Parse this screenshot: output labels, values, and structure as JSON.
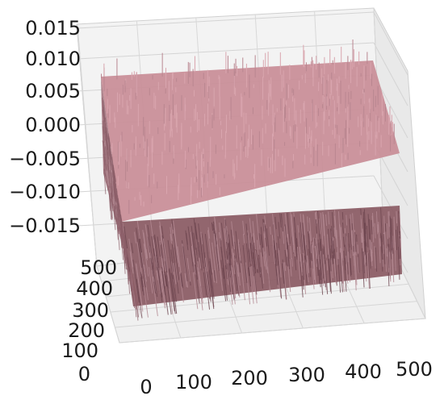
{
  "chart_data": {
    "type": "surface-3d",
    "title": "",
    "xlabel": "",
    "ylabel": "",
    "zlabel": "",
    "x_ticks": [
      "0",
      "100",
      "200",
      "300",
      "400",
      "500"
    ],
    "y_ticks": [
      "0",
      "100",
      "200",
      "300",
      "400",
      "500"
    ],
    "z_ticks": [
      "0.015",
      "0.010",
      "0.005",
      "0.000",
      "−0.005",
      "−0.010",
      "−0.015"
    ],
    "xlim": [
      0,
      512
    ],
    "ylim": [
      0,
      512
    ],
    "zlim": [
      -0.015,
      0.015
    ],
    "grid": true,
    "surface": {
      "description": "512x512 noise field, values concentrated near 0 with spikes up to about ±0.012",
      "resolution": [
        512,
        512
      ],
      "z_center": 0.0,
      "z_spread": 0.006,
      "z_spike_max": 0.012,
      "color": "#c98f99",
      "shade_color": "#8a5a63"
    }
  }
}
